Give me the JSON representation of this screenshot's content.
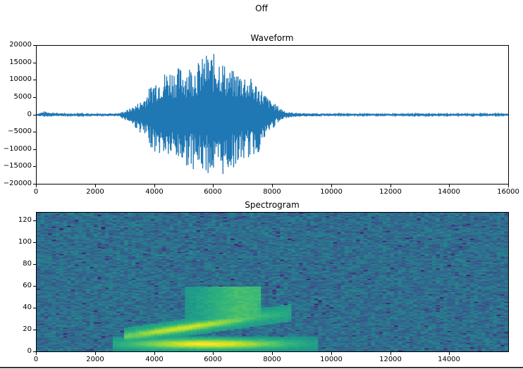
{
  "figure": {
    "suptitle": "Off"
  },
  "chart_data": [
    {
      "type": "line",
      "title": "Waveform",
      "xlabel": "",
      "ylabel": "",
      "xlim": [
        0,
        16000
      ],
      "ylim": [
        -20000,
        20000
      ],
      "grid": false,
      "legend": null,
      "x_ticks": [
        0,
        2000,
        4000,
        6000,
        8000,
        10000,
        12000,
        14000,
        16000
      ],
      "x_tick_labels": [
        "0",
        "2000",
        "4000",
        "6000",
        "8000",
        "10000",
        "12000",
        "14000",
        "16000"
      ],
      "y_ticks": [
        20000,
        15000,
        10000,
        5000,
        0,
        -5000,
        -10000,
        -15000,
        -20000
      ],
      "y_tick_labels": [
        "20000",
        "15000",
        "10000",
        "5000",
        "0",
        "−5000",
        "−10000",
        "−15000",
        "−20000"
      ],
      "color": "#1f77b4",
      "envelope": {
        "x": [
          0,
          250,
          1000,
          2000,
          2800,
          3200,
          3600,
          4000,
          4500,
          5000,
          5500,
          5800,
          6200,
          6500,
          7000,
          7500,
          7900,
          8200,
          8500,
          9000,
          10000,
          12000,
          14000,
          16000
        ],
        "upper": [
          300,
          1000,
          300,
          300,
          500,
          2000,
          4500,
          10500,
          13500,
          14000,
          15500,
          18000,
          17500,
          13000,
          12500,
          9000,
          4500,
          2500,
          800,
          500,
          300,
          300,
          300,
          300
        ],
        "lower": [
          -300,
          -600,
          -300,
          -300,
          -500,
          -2500,
          -6000,
          -11000,
          -12500,
          -14500,
          -16500,
          -17000,
          -18500,
          -16500,
          -13500,
          -11500,
          -5000,
          -2500,
          -800,
          -500,
          -300,
          -300,
          -300,
          -300
        ]
      }
    },
    {
      "type": "heatmap",
      "title": "Spectrogram",
      "xlabel": "",
      "ylabel": "",
      "xlim": [
        0,
        16000
      ],
      "ylim": [
        0,
        128
      ],
      "grid": false,
      "colormap": "viridis",
      "x_ticks": [
        0,
        2000,
        4000,
        6000,
        8000,
        10000,
        12000,
        14000
      ],
      "x_tick_labels": [
        "0",
        "2000",
        "4000",
        "6000",
        "8000",
        "10000",
        "12000",
        "14000"
      ],
      "y_ticks": [
        0,
        20,
        40,
        60,
        80,
        100,
        120
      ],
      "y_tick_labels": [
        "0",
        "20",
        "40",
        "60",
        "80",
        "100",
        "120"
      ],
      "features": [
        {
          "name": "fundamental band",
          "x_range": [
            2600,
            9500
          ],
          "y_range": [
            2,
            14
          ],
          "intensity": "high (yellow)",
          "peak_x": 5800
        },
        {
          "name": "rising formant",
          "x_range": [
            3000,
            8600
          ],
          "y_range": [
            14,
            40
          ],
          "intensity": "medium-high (yellow-green)"
        },
        {
          "name": "upper formant",
          "x_range": [
            5000,
            7600
          ],
          "y_range": [
            30,
            60
          ],
          "intensity": "medium (green)"
        },
        {
          "name": "background noise",
          "x_range": [
            0,
            16000
          ],
          "y_range": [
            0,
            128
          ],
          "intensity": "low (blue-teal/purple)"
        }
      ]
    }
  ]
}
